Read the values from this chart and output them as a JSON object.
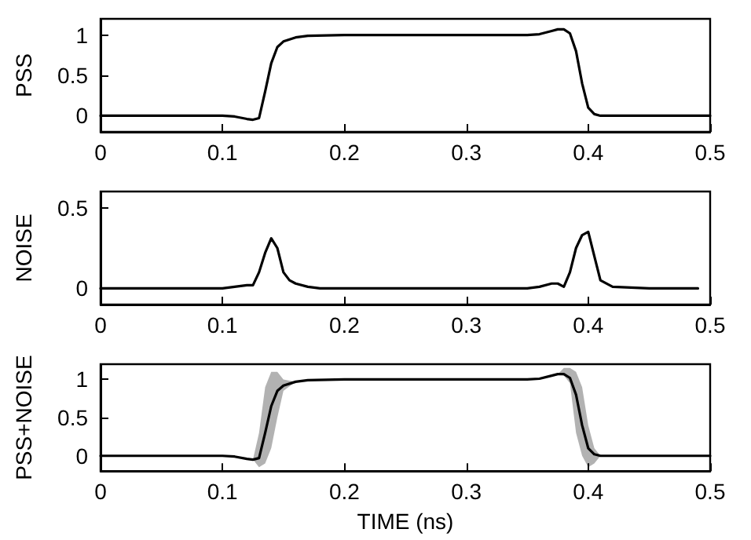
{
  "chart_data": [
    {
      "type": "line",
      "ylabel": "PSS",
      "x": [
        0,
        0.05,
        0.1,
        0.11,
        0.12,
        0.125,
        0.13,
        0.135,
        0.14,
        0.145,
        0.15,
        0.16,
        0.17,
        0.2,
        0.25,
        0.3,
        0.35,
        0.36,
        0.37,
        0.375,
        0.38,
        0.385,
        0.39,
        0.395,
        0.4,
        0.405,
        0.41,
        0.42,
        0.45,
        0.5
      ],
      "series": [
        {
          "color": "#000000",
          "values": [
            0,
            0,
            0,
            -0.01,
            -0.04,
            -0.05,
            -0.03,
            0.3,
            0.65,
            0.85,
            0.92,
            0.97,
            0.99,
            1,
            1,
            1,
            1,
            1.01,
            1.05,
            1.07,
            1.07,
            1.02,
            0.8,
            0.4,
            0.1,
            0.02,
            0,
            0,
            0,
            0
          ]
        }
      ],
      "xlim": [
        0,
        0.5
      ],
      "xticks": [
        0,
        0.1,
        0.2,
        0.3,
        0.4,
        0.5
      ],
      "ylim": [
        -0.2,
        1.2
      ],
      "yticks": [
        0,
        0.5,
        1
      ],
      "grid": false,
      "line_style": "solid",
      "marker": "none"
    },
    {
      "type": "line",
      "ylabel": "NOISE",
      "x": [
        0,
        0.05,
        0.1,
        0.11,
        0.12,
        0.125,
        0.13,
        0.135,
        0.14,
        0.145,
        0.15,
        0.155,
        0.16,
        0.17,
        0.18,
        0.2,
        0.3,
        0.35,
        0.36,
        0.37,
        0.375,
        0.38,
        0.385,
        0.39,
        0.395,
        0.4,
        0.405,
        0.41,
        0.42,
        0.45,
        0.49
      ],
      "series": [
        {
          "color": "#000000",
          "values": [
            0,
            0,
            0,
            0.01,
            0.02,
            0.02,
            0.1,
            0.22,
            0.31,
            0.25,
            0.1,
            0.05,
            0.03,
            0.01,
            0,
            0,
            0,
            0,
            0.01,
            0.03,
            0.03,
            0.01,
            0.1,
            0.25,
            0.33,
            0.35,
            0.2,
            0.05,
            0.01,
            0,
            0
          ]
        }
      ],
      "xlim": [
        0,
        0.5
      ],
      "xticks": [
        0,
        0.1,
        0.2,
        0.3,
        0.4,
        0.5
      ],
      "ylim": [
        -0.1,
        0.6
      ],
      "yticks": [
        0,
        0.5
      ],
      "grid": false,
      "line_style": "solid",
      "marker": "none"
    },
    {
      "type": "line",
      "ylabel": "PSS+NOISE",
      "xlabel": "TIME (ns)",
      "x": [
        0,
        0.05,
        0.1,
        0.11,
        0.12,
        0.125,
        0.13,
        0.135,
        0.14,
        0.145,
        0.15,
        0.16,
        0.17,
        0.2,
        0.25,
        0.3,
        0.35,
        0.36,
        0.37,
        0.375,
        0.38,
        0.385,
        0.39,
        0.395,
        0.4,
        0.405,
        0.41,
        0.42,
        0.45,
        0.5
      ],
      "series": [
        {
          "color": "#000000",
          "values": [
            0,
            0,
            0,
            -0.01,
            -0.04,
            -0.05,
            -0.03,
            0.3,
            0.65,
            0.85,
            0.92,
            0.97,
            0.99,
            1,
            1,
            1,
            1,
            1.01,
            1.05,
            1.07,
            1.07,
            1.02,
            0.8,
            0.4,
            0.1,
            0.02,
            0,
            0,
            0,
            0
          ],
          "lower": [
            0,
            0,
            0,
            -0.01,
            -0.04,
            -0.05,
            -0.15,
            -0.1,
            0.1,
            0.5,
            0.85,
            0.97,
            0.99,
            1,
            1,
            1,
            1,
            1.01,
            1.05,
            1.07,
            1.05,
            0.95,
            0.3,
            0,
            -0.15,
            -0.1,
            0,
            0,
            0,
            0
          ],
          "upper": [
            0,
            0,
            0,
            -0.01,
            -0.04,
            -0.05,
            0.3,
            0.9,
            1.1,
            1.1,
            1,
            0.97,
            0.99,
            1,
            1,
            1,
            1,
            1.01,
            1.05,
            1.07,
            1.15,
            1.15,
            1.1,
            0.9,
            0.4,
            0.1,
            0,
            0,
            0,
            0
          ]
        }
      ],
      "xlim": [
        0,
        0.5
      ],
      "xticks": [
        0,
        0.1,
        0.2,
        0.3,
        0.4,
        0.5
      ],
      "ylim": [
        -0.2,
        1.2
      ],
      "yticks": [
        0,
        0.5,
        1
      ],
      "grid": false,
      "line_style": "solid",
      "marker": "none"
    }
  ]
}
